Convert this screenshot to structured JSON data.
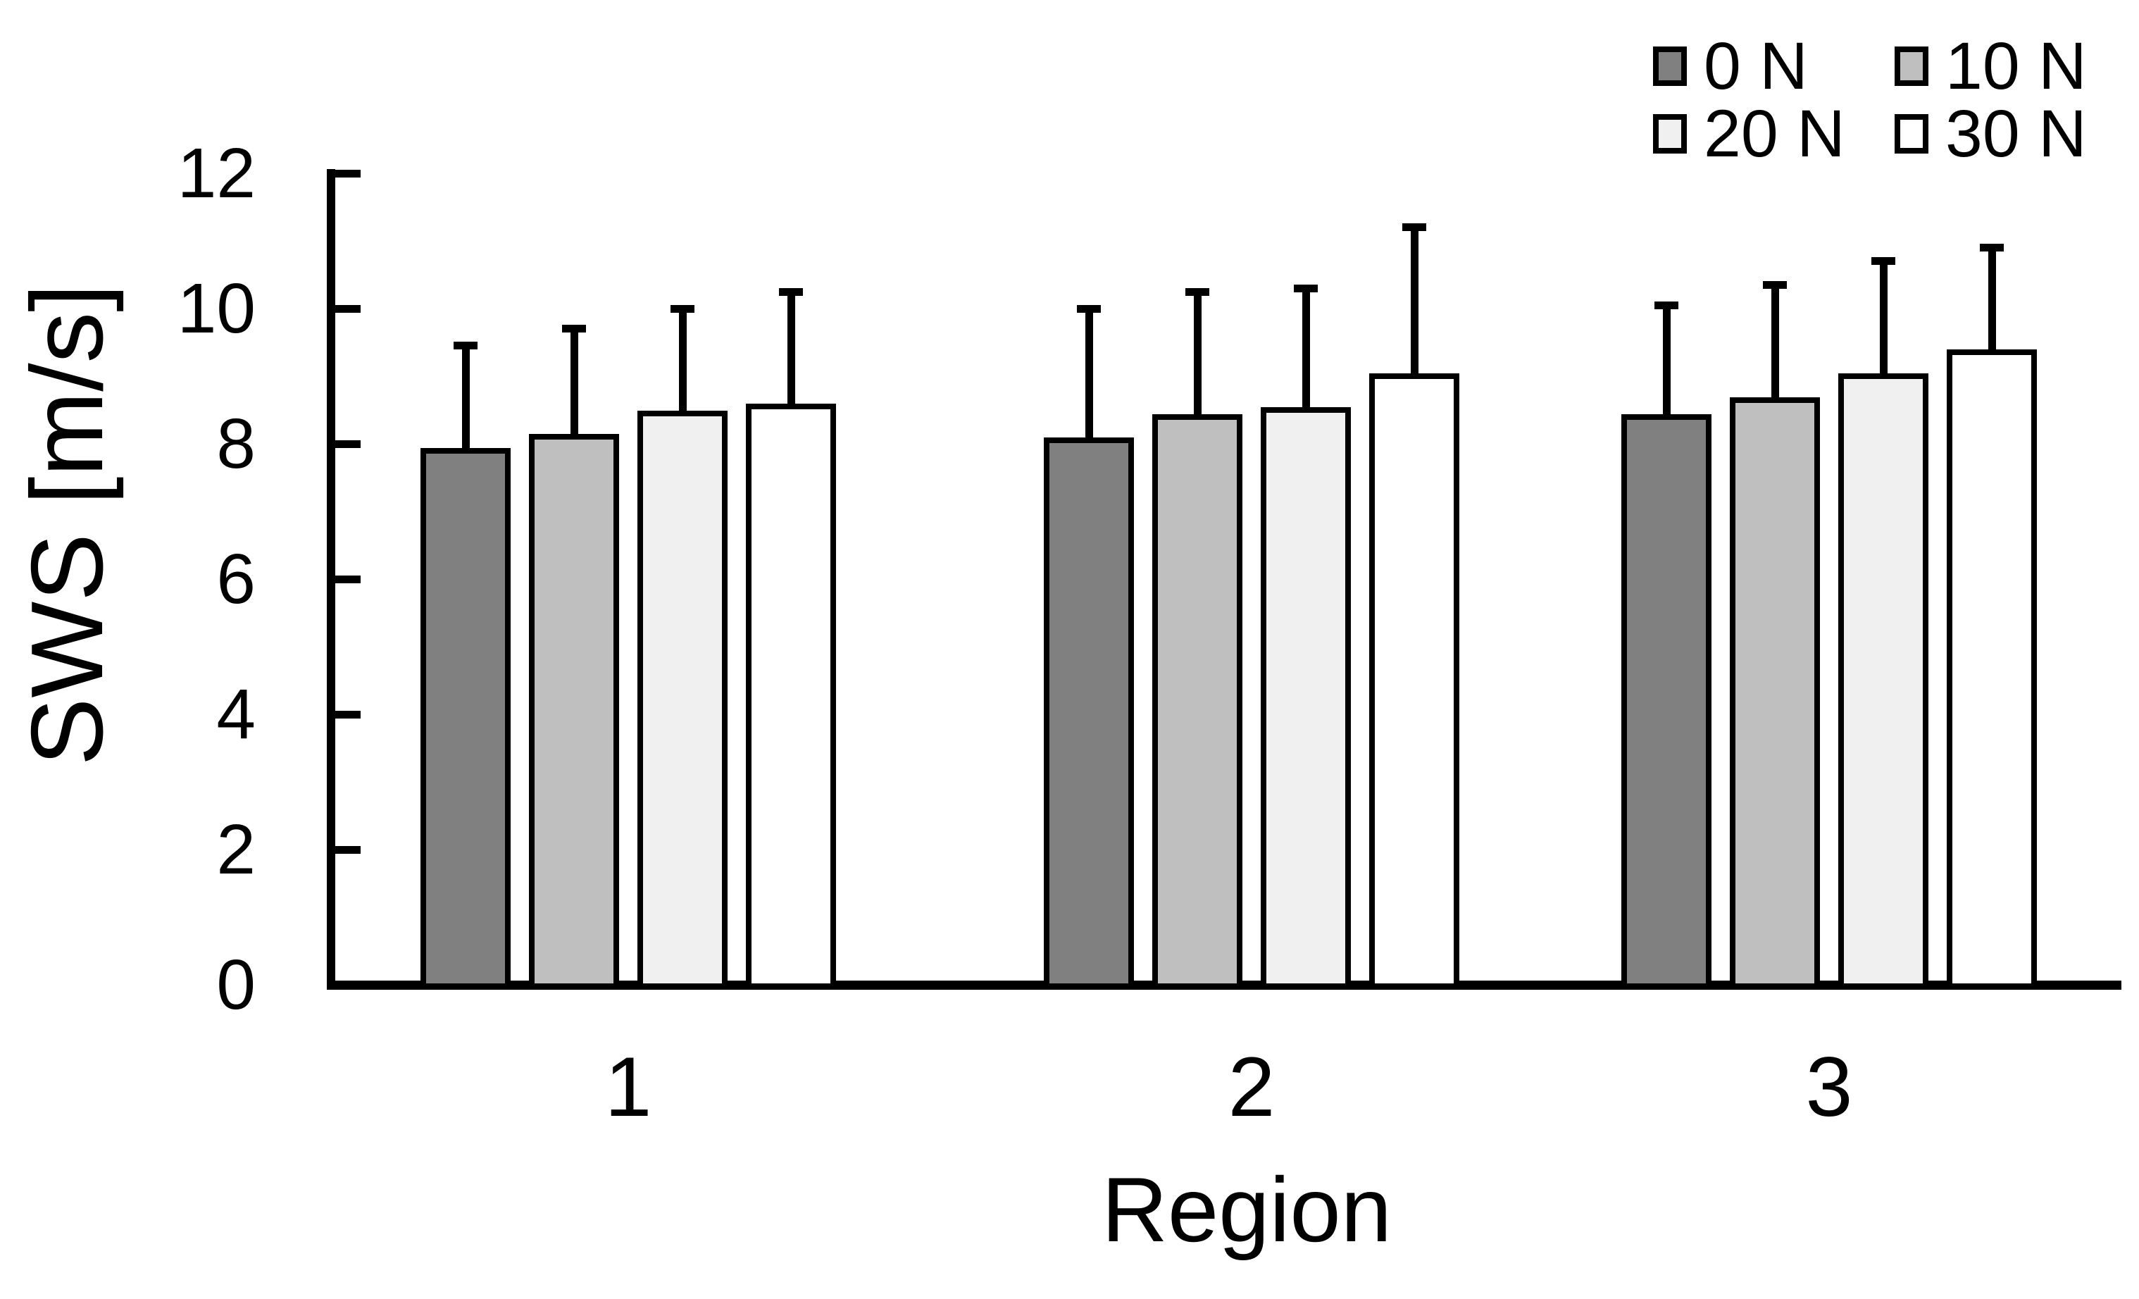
{
  "chart_data": {
    "type": "bar",
    "title": "",
    "xlabel": "Region",
    "ylabel": "SWS [m/s]",
    "categories": [
      "1",
      "2",
      "3"
    ],
    "series": [
      {
        "name": "0 N",
        "color": "#808080",
        "values": [
          7.9,
          8.05,
          8.4
        ],
        "error_up": [
          1.55,
          1.95,
          1.65
        ]
      },
      {
        "name": "10 N",
        "color": "#BFBFBF",
        "values": [
          8.1,
          8.4,
          8.65
        ],
        "error_up": [
          1.6,
          1.85,
          1.7
        ]
      },
      {
        "name": "20 N",
        "color": "#F0F0F0",
        "values": [
          8.45,
          8.5,
          9.0
        ],
        "error_up": [
          1.55,
          1.8,
          1.7
        ]
      },
      {
        "name": "30 N",
        "color": "#FFFFFF",
        "values": [
          8.55,
          9.0,
          9.35
        ],
        "error_up": [
          1.7,
          2.2,
          1.55
        ]
      }
    ],
    "ylim": [
      0,
      12
    ],
    "yticks": [
      0,
      2,
      4,
      6,
      8,
      10,
      12
    ],
    "grid": false,
    "legend_position": "top-right",
    "bar_edge_color": "#000000",
    "error_bar_color": "#000000",
    "axis_color": "#000000",
    "background_color": "#FFFFFF"
  }
}
